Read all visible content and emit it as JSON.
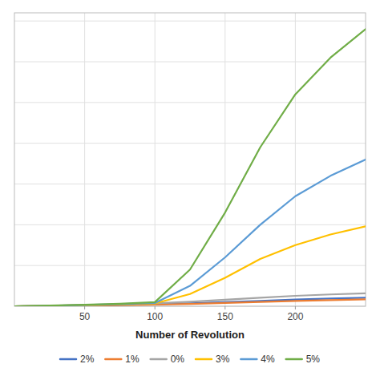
{
  "chart_data": {
    "type": "line",
    "xlabel": "Number of Revolution",
    "x": [
      0,
      25,
      50,
      75,
      100,
      125,
      150,
      175,
      200,
      225,
      250
    ],
    "series": [
      {
        "name": "2%",
        "color": "#4472C4",
        "values": [
          0,
          0.05,
          0.1,
          0.15,
          0.25,
          0.35,
          0.5,
          0.65,
          0.82,
          0.95,
          1.05
        ]
      },
      {
        "name": "1%",
        "color": "#ED7D31",
        "values": [
          0,
          0.04,
          0.08,
          0.13,
          0.2,
          0.28,
          0.4,
          0.52,
          0.65,
          0.75,
          0.85
        ]
      },
      {
        "name": "0%",
        "color": "#A5A5A5",
        "values": [
          0,
          0.06,
          0.14,
          0.22,
          0.35,
          0.55,
          0.8,
          1.05,
          1.28,
          1.45,
          1.58
        ]
      },
      {
        "name": "3%",
        "color": "#FFC000",
        "values": [
          0,
          0.06,
          0.14,
          0.22,
          0.35,
          1.5,
          3.5,
          5.8,
          7.5,
          8.8,
          9.8
        ]
      },
      {
        "name": "4%",
        "color": "#5B9BD5",
        "values": [
          0,
          0.07,
          0.16,
          0.25,
          0.4,
          2.5,
          6.0,
          10.0,
          13.5,
          16.0,
          18.0
        ]
      },
      {
        "name": "5%",
        "color": "#70AD47",
        "values": [
          0,
          0.08,
          0.18,
          0.3,
          0.5,
          4.5,
          11.5,
          19.5,
          26.0,
          30.5,
          34.0
        ]
      }
    ],
    "xlim": [
      0,
      250
    ],
    "ylim": [
      0,
      36
    ],
    "xticks": [
      50,
      100,
      150,
      200
    ],
    "yticks": [
      0,
      5,
      10,
      15,
      20,
      25,
      30,
      35
    ],
    "grid": true,
    "legend": "bottom",
    "tick_labels": "x"
  }
}
